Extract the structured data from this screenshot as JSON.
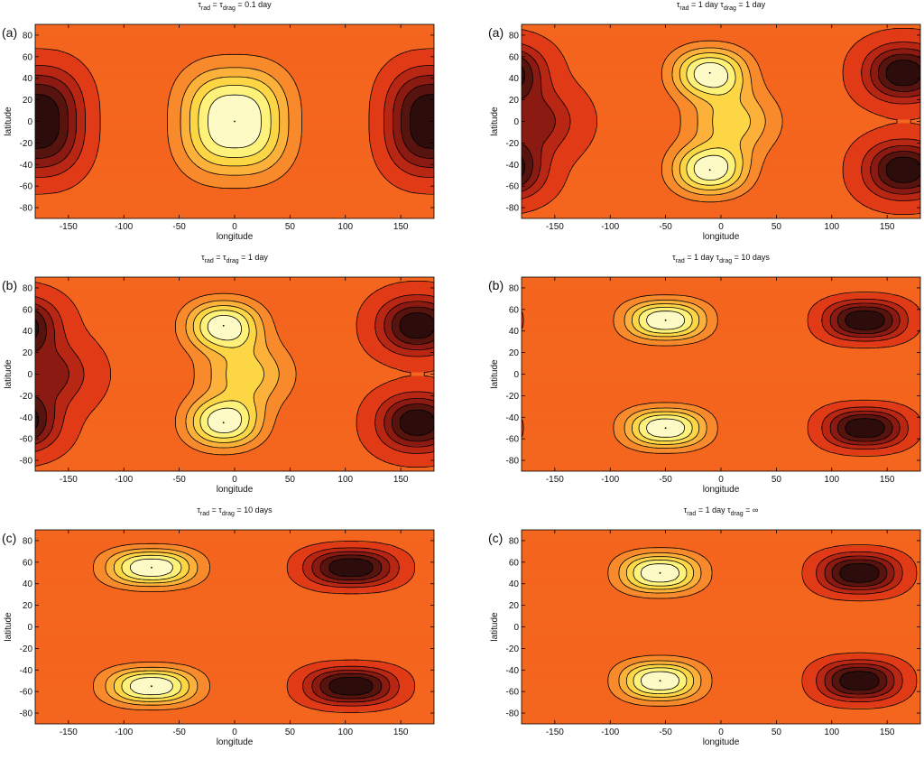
{
  "colormap": [
    "#2d0d0c",
    "#57140f",
    "#8a1a12",
    "#b82614",
    "#e13a17",
    "#f4651e",
    "#f98a2c",
    "#fcb13a",
    "#fdd645",
    "#fef27a",
    "#fefac6"
  ],
  "chart_data": [
    {
      "type": "heatmap",
      "letter": "(a)",
      "title_parts": [
        {
          "t": "τ"
        },
        {
          "t": "rad",
          "sub": true
        },
        {
          "t": " = τ"
        },
        {
          "t": "drag",
          "sub": true
        },
        {
          "t": " = 0.1 day"
        }
      ],
      "xlabel": "longitude",
      "ylabel": "latitude",
      "xlim": [
        -180,
        180
      ],
      "ylim": [
        -90,
        90
      ],
      "xticks": [
        -150,
        -100,
        -50,
        0,
        50,
        100,
        150
      ],
      "yticks": [
        -80,
        -60,
        -40,
        -20,
        0,
        20,
        40,
        60,
        80
      ],
      "features": [
        {
          "lon": 0,
          "lat": 0,
          "amp": 1.0,
          "slon": 45,
          "slat": 46,
          "p": 2.6
        },
        {
          "lon": 180,
          "lat": 0,
          "amp": -0.95,
          "slon": 40,
          "slat": 46,
          "p": 2.6
        },
        {
          "lon": -180,
          "lat": 0,
          "amp": -0.95,
          "slon": 40,
          "slat": 46,
          "p": 2.6
        }
      ]
    },
    {
      "type": "heatmap",
      "letter": "(a)",
      "title_parts": [
        {
          "t": "τ"
        },
        {
          "t": "rad",
          "sub": true
        },
        {
          "t": " = 1 day   τ"
        },
        {
          "t": "drag",
          "sub": true
        },
        {
          "t": " = 1 day"
        }
      ],
      "xlabel": "longitude",
      "ylabel": "latitude",
      "xlim": [
        -180,
        180
      ],
      "ylim": [
        -90,
        90
      ],
      "xticks": [
        -150,
        -100,
        -50,
        0,
        50,
        100,
        150
      ],
      "yticks": [
        -80,
        -60,
        -40,
        -20,
        0,
        20,
        40,
        60,
        80
      ],
      "features": [
        {
          "lon": -10,
          "lat": 45,
          "amp": 0.9,
          "slon": 32,
          "slat": 22,
          "p": 2.2
        },
        {
          "lon": -10,
          "lat": -45,
          "amp": 0.9,
          "slon": 32,
          "slat": 22,
          "p": 2.2
        },
        {
          "lon": 10,
          "lat": 0,
          "amp": 0.55,
          "slon": 38,
          "slat": 30,
          "p": 2.0
        },
        {
          "lon": 165,
          "lat": 45,
          "amp": -0.85,
          "slon": 32,
          "slat": 24,
          "p": 2.2
        },
        {
          "lon": 165,
          "lat": -45,
          "amp": -0.85,
          "slon": 32,
          "slat": 24,
          "p": 2.2
        },
        {
          "lon": -195,
          "lat": 45,
          "amp": -0.85,
          "slon": 32,
          "slat": 24,
          "p": 2.2
        },
        {
          "lon": -195,
          "lat": -45,
          "amp": -0.85,
          "slon": 32,
          "slat": 24,
          "p": 2.2
        },
        {
          "lon": -170,
          "lat": 0,
          "amp": -0.5,
          "slon": 35,
          "slat": 28,
          "p": 2.0
        }
      ]
    },
    {
      "type": "heatmap",
      "letter": "(b)",
      "title_parts": [
        {
          "t": "τ"
        },
        {
          "t": "rad",
          "sub": true
        },
        {
          "t": " = τ"
        },
        {
          "t": "drag",
          "sub": true
        },
        {
          "t": " = 1 day"
        }
      ],
      "xlabel": "longitude",
      "ylabel": "latitude",
      "xlim": [
        -180,
        180
      ],
      "ylim": [
        -90,
        90
      ],
      "xticks": [
        -150,
        -100,
        -50,
        0,
        50,
        100,
        150
      ],
      "yticks": [
        -80,
        -60,
        -40,
        -20,
        0,
        20,
        40,
        60,
        80
      ],
      "features": [
        {
          "lon": -10,
          "lat": 45,
          "amp": 0.9,
          "slon": 32,
          "slat": 22,
          "p": 2.2
        },
        {
          "lon": -10,
          "lat": -45,
          "amp": 0.9,
          "slon": 32,
          "slat": 22,
          "p": 2.2
        },
        {
          "lon": 10,
          "lat": 0,
          "amp": 0.55,
          "slon": 38,
          "slat": 30,
          "p": 2.0
        },
        {
          "lon": 165,
          "lat": 45,
          "amp": -0.85,
          "slon": 32,
          "slat": 24,
          "p": 2.2
        },
        {
          "lon": 165,
          "lat": -45,
          "amp": -0.85,
          "slon": 32,
          "slat": 24,
          "p": 2.2
        },
        {
          "lon": -195,
          "lat": 45,
          "amp": -0.85,
          "slon": 32,
          "slat": 24,
          "p": 2.2
        },
        {
          "lon": -195,
          "lat": -45,
          "amp": -0.85,
          "slon": 32,
          "slat": 24,
          "p": 2.2
        },
        {
          "lon": -170,
          "lat": 0,
          "amp": -0.5,
          "slon": 35,
          "slat": 28,
          "p": 2.0
        }
      ]
    },
    {
      "type": "heatmap",
      "letter": "(b)",
      "title_parts": [
        {
          "t": "τ"
        },
        {
          "t": "rad",
          "sub": true
        },
        {
          "t": " = 1 day   τ"
        },
        {
          "t": "drag",
          "sub": true
        },
        {
          "t": " = 10 days"
        }
      ],
      "xlabel": "longitude",
      "ylabel": "latitude",
      "xlim": [
        -180,
        180
      ],
      "ylim": [
        -90,
        90
      ],
      "xticks": [
        -150,
        -100,
        -50,
        0,
        50,
        100,
        150
      ],
      "yticks": [
        -80,
        -60,
        -40,
        -20,
        0,
        20,
        40,
        60,
        80
      ],
      "features": [
        {
          "lon": -50,
          "lat": 50,
          "amp": 0.95,
          "slon": 34,
          "slat": 17,
          "p": 2.4
        },
        {
          "lon": -50,
          "lat": -50,
          "amp": 0.95,
          "slon": 34,
          "slat": 17,
          "p": 2.4
        },
        {
          "lon": 130,
          "lat": 50,
          "amp": -0.9,
          "slon": 34,
          "slat": 17,
          "p": 2.4
        },
        {
          "lon": 130,
          "lat": -50,
          "amp": -0.9,
          "slon": 34,
          "slat": 17,
          "p": 2.4
        },
        {
          "lon": -230,
          "lat": 50,
          "amp": -0.9,
          "slon": 34,
          "slat": 17,
          "p": 2.4
        },
        {
          "lon": -230,
          "lat": -50,
          "amp": -0.9,
          "slon": 34,
          "slat": 17,
          "p": 2.4
        }
      ]
    },
    {
      "type": "heatmap",
      "letter": "(c)",
      "title_parts": [
        {
          "t": "τ"
        },
        {
          "t": "rad",
          "sub": true
        },
        {
          "t": " = τ"
        },
        {
          "t": "drag",
          "sub": true
        },
        {
          "t": " = 10 days"
        }
      ],
      "xlabel": "longitude",
      "ylabel": "latitude",
      "xlim": [
        -180,
        180
      ],
      "ylim": [
        -90,
        90
      ],
      "xticks": [
        -150,
        -100,
        -50,
        0,
        50,
        100,
        150
      ],
      "yticks": [
        -80,
        -60,
        -40,
        -20,
        0,
        20,
        40,
        60,
        80
      ],
      "features": [
        {
          "lon": -75,
          "lat": 55,
          "amp": 1.0,
          "slon": 38,
          "slat": 16,
          "p": 2.4
        },
        {
          "lon": -75,
          "lat": -55,
          "amp": 1.0,
          "slon": 38,
          "slat": 16,
          "p": 2.4
        },
        {
          "lon": 105,
          "lat": 55,
          "amp": -0.95,
          "slon": 38,
          "slat": 16,
          "p": 2.4
        },
        {
          "lon": 105,
          "lat": -55,
          "amp": -0.95,
          "slon": 38,
          "slat": 16,
          "p": 2.4
        },
        {
          "lon": -255,
          "lat": 55,
          "amp": -0.95,
          "slon": 38,
          "slat": 16,
          "p": 2.4
        },
        {
          "lon": -255,
          "lat": -55,
          "amp": -0.95,
          "slon": 38,
          "slat": 16,
          "p": 2.4
        }
      ]
    },
    {
      "type": "heatmap",
      "letter": "(c)",
      "title_parts": [
        {
          "t": "τ"
        },
        {
          "t": "rad",
          "sub": true
        },
        {
          "t": " = 1 day   τ"
        },
        {
          "t": "drag",
          "sub": true
        },
        {
          "t": " = ∞"
        }
      ],
      "xlabel": "longitude",
      "ylabel": "latitude",
      "xlim": [
        -180,
        180
      ],
      "ylim": [
        -90,
        90
      ],
      "xticks": [
        -150,
        -100,
        -50,
        0,
        50,
        100,
        150
      ],
      "yticks": [
        -80,
        -60,
        -40,
        -20,
        0,
        20,
        40,
        60,
        80
      ],
      "features": [
        {
          "lon": -55,
          "lat": 50,
          "amp": 0.95,
          "slon": 34,
          "slat": 17,
          "p": 2.4
        },
        {
          "lon": -55,
          "lat": -50,
          "amp": 0.95,
          "slon": 34,
          "slat": 17,
          "p": 2.4
        },
        {
          "lon": 125,
          "lat": 50,
          "amp": -0.9,
          "slon": 34,
          "slat": 17,
          "p": 2.4
        },
        {
          "lon": 125,
          "lat": -50,
          "amp": -0.9,
          "slon": 34,
          "slat": 17,
          "p": 2.4
        },
        {
          "lon": -235,
          "lat": 50,
          "amp": -0.9,
          "slon": 34,
          "slat": 17,
          "p": 2.4
        },
        {
          "lon": -235,
          "lat": -50,
          "amp": -0.9,
          "slon": 34,
          "slat": 17,
          "p": 2.4
        }
      ]
    }
  ]
}
